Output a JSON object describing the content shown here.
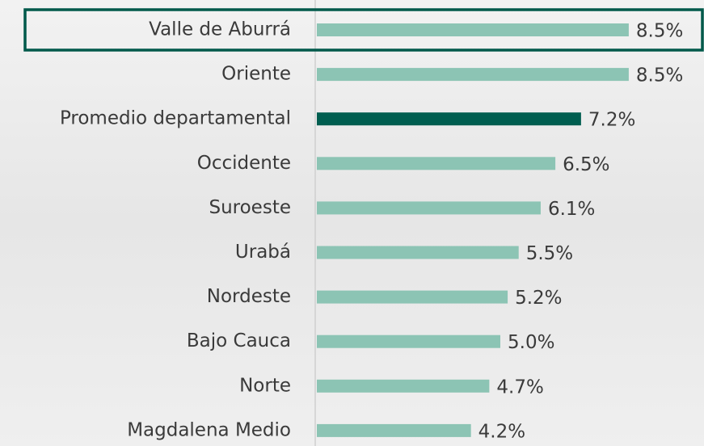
{
  "chart_data": {
    "type": "barh",
    "categories": [
      "Valle de Aburrá",
      "Oriente",
      "Promedio departamental",
      "Occidente",
      "Suroeste",
      "Urabá",
      "Nordeste",
      "Bajo Cauca",
      "Norte",
      "Magdalena Medio"
    ],
    "values": [
      8.5,
      8.5,
      7.2,
      6.5,
      6.1,
      5.5,
      5.2,
      5.0,
      4.7,
      4.2
    ],
    "value_labels": [
      "8.5%",
      "8.5%",
      "7.2%",
      "6.5%",
      "6.1%",
      "5.5%",
      "5.2%",
      "5.0%",
      "4.7%",
      "4.2%"
    ],
    "colors": [
      "#8cc4b4",
      "#8cc4b4",
      "#005e50",
      "#8cc4b4",
      "#8cc4b4",
      "#8cc4b4",
      "#8cc4b4",
      "#8cc4b4",
      "#8cc4b4",
      "#8cc4b4"
    ]
  }
}
